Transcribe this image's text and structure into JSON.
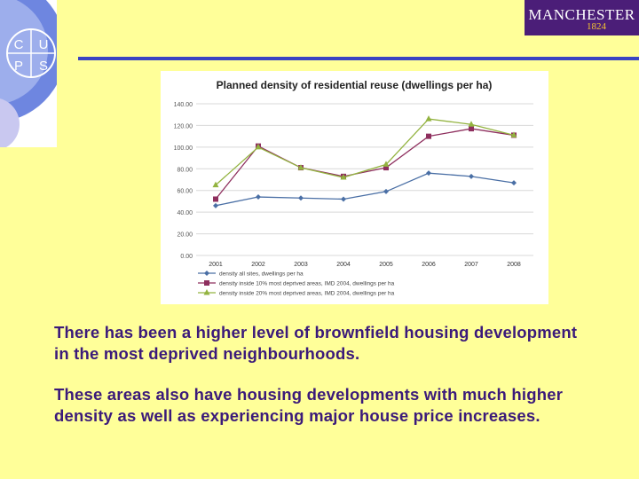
{
  "logo": {
    "letters": [
      "C",
      "U",
      "P",
      "S"
    ]
  },
  "brand": {
    "name": "MANCHESTER",
    "year": "1824"
  },
  "chart_data": {
    "type": "line",
    "title": "Planned density of residential reuse (dwellings per ha)",
    "categories": [
      "2001",
      "2002",
      "2003",
      "2004",
      "2005",
      "2006",
      "2007",
      "2008"
    ],
    "y_ticks": [
      "0.00",
      "20.00",
      "40.00",
      "60.00",
      "80.00",
      "100.00",
      "120.00",
      "140.00"
    ],
    "ylim": [
      0,
      140
    ],
    "grid": true,
    "legend_position": "bottom",
    "series": [
      {
        "name": "density all sites, dwellings per ha",
        "color": "#4A6FA5",
        "marker": "diamond",
        "values": [
          46,
          54,
          53,
          52,
          59,
          76,
          73,
          67
        ]
      },
      {
        "name": "density inside 10% most deprived areas, IMD 2004, dwellings per ha",
        "color": "#8E2F5E",
        "marker": "square",
        "values": [
          52,
          101,
          81,
          73,
          81,
          110,
          117,
          111
        ]
      },
      {
        "name": "density inside 20% most deprived areas, IMD 2004, dwellings per ha",
        "color": "#93B340",
        "marker": "triangle",
        "values": [
          65,
          100,
          81,
          72,
          84,
          126,
          121,
          111
        ]
      }
    ]
  },
  "text": {
    "para1": "There has been a higher level of brownfield housing development in the most deprived neighbourhoods.",
    "para2": "These areas also have housing developments with much higher density as well as experiencing major house price increases."
  }
}
